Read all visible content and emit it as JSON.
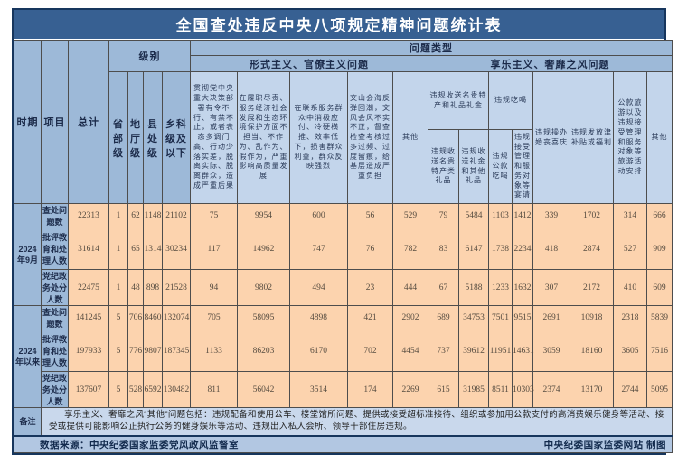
{
  "title": "全国查处违反中央八项规定精神问题统计表",
  "header": {
    "period": "时期",
    "item": "项目",
    "total": "总计",
    "level_group": "级别",
    "levels": [
      "省部级",
      "地厅级",
      "县处级",
      "乡科级及以下"
    ],
    "problem_type_group": "问题类型",
    "formalism_group": "形式主义、官僚主义问题",
    "hedonism_group": "享乐主义、奢靡之风问题",
    "formalism_cols": [
      "贯彻党中央重大决策部署有令不行、有禁不止，或者表态多调门高、行动少落实差，脱离实际、脱离群众，造成严重后果",
      "在履职尽责、服务经济社会发展和生态环境保护方面不担当、不作为、乱作为、假作为，严重影响高质量发展",
      "在联系服务群众中消极应付、冷硬横推、效率低下，损害群众利益，群众反映强烈",
      "文山会海反弹回潮，文风会风不实不正，督查检查考核过多过频、过度留痕，给基层造成严重负担",
      "其他"
    ],
    "hedonism": {
      "gift_group": "违规收送名贵特产和礼品礼金",
      "gift_cols": [
        "违规收送名贵特产类礼品",
        "违规收送礼金和其他礼品"
      ],
      "dining_group": "违规吃喝",
      "dining_cols": [
        "违规公款吃喝",
        "违规接受管理和服务对象等宴请"
      ],
      "other_cols": [
        "违规操办婚丧喜庆",
        "违规发放津补贴或福利",
        "公款旅游以及违规接受管理和服务对象等旅游活动安排",
        "其他"
      ]
    }
  },
  "periods": [
    {
      "label": "2024年9月",
      "rows": [
        {
          "label": "查处问题数",
          "values": [
            "22313",
            "1",
            "62",
            "1148",
            "21102",
            "75",
            "9954",
            "600",
            "56",
            "529",
            "79",
            "5484",
            "1103",
            "1412",
            "339",
            "1702",
            "314",
            "666"
          ]
        },
        {
          "label": "批评教育和处理人数",
          "values": [
            "31614",
            "1",
            "65",
            "1314",
            "30234",
            "117",
            "14962",
            "747",
            "76",
            "782",
            "83",
            "6147",
            "1738",
            "2234",
            "418",
            "2874",
            "527",
            "909"
          ]
        },
        {
          "label": "党纪政务处分人数",
          "values": [
            "22475",
            "1",
            "48",
            "898",
            "21528",
            "94",
            "9802",
            "494",
            "23",
            "444",
            "67",
            "5188",
            "1233",
            "1632",
            "307",
            "2172",
            "410",
            "609"
          ]
        }
      ]
    },
    {
      "label": "2024年以来",
      "rows": [
        {
          "label": "查处问题数",
          "values": [
            "141245",
            "5",
            "706",
            "8460",
            "132074",
            "705",
            "58095",
            "4898",
            "421",
            "2902",
            "689",
            "34753",
            "7501",
            "9515",
            "2691",
            "10918",
            "2318",
            "5839"
          ]
        },
        {
          "label": "批评教育和处理人数",
          "values": [
            "197933",
            "5",
            "776",
            "9807",
            "187345",
            "1133",
            "86203",
            "6170",
            "702",
            "4454",
            "737",
            "39612",
            "11951",
            "14631",
            "3059",
            "18160",
            "3605",
            "7516"
          ]
        },
        {
          "label": "党纪政务处分人数",
          "values": [
            "137607",
            "5",
            "528",
            "6592",
            "130482",
            "811",
            "56042",
            "3514",
            "174",
            "2269",
            "615",
            "31985",
            "8511",
            "10303",
            "2374",
            "13170",
            "2744",
            "5095"
          ]
        }
      ]
    }
  ],
  "remark": {
    "label": "备注",
    "text": "享乐主义、奢靡之风“其他”问题包括：违规配备和使用公车、楼堂馆所问题、提供或接受超标准接待、组织或参加用公款支付的高消费娱乐健身等活动、接受或提供可能影响公正执行公务的健身娱乐等活动、违规出入私人会所、领导干部住房违规。"
  },
  "footer": {
    "source": "数据来源：中央纪委国家监委党风政风监督室",
    "credit": "中央纪委国家监委网站 制图"
  },
  "colors": {
    "title_bar": "#376092",
    "header_medium": "#9db9d8",
    "header_light": "#c3d5eb",
    "data_cell": "#fcd3ae",
    "remark_bg": "#c9d8ec",
    "footer_bg": "#b2c7e2",
    "frame_border": "#17365d"
  },
  "chart_data": {
    "type": "table",
    "title": "全国查处违反中央八项规定精神问题统计表",
    "columns": [
      "时期",
      "项目",
      "总计",
      "省部级",
      "地厅级",
      "县处级",
      "乡科级及以下",
      "贯彻党中央重大决策部署有令不行、有禁不止，或者表态多调门高、行动少落实差，脱离实际、脱离群众，造成严重后果",
      "在履职尽责、服务经济社会发展和生态环境保护方面不担当、不作为、乱作为、假作为，严重影响高质量发展",
      "在联系服务群众中消极应付、冷硬横推、效率低下，损害群众利益，群众反映强烈",
      "文山会海反弹回潮，文风会风不实不正，督查检查考核过多过频、过度留痕，给基层造成严重负担",
      "其他",
      "违规收送名贵特产类礼品",
      "违规收送礼金和其他礼品",
      "违规公款吃喝",
      "违规接受管理和服务对象等宴请",
      "违规操办婚丧喜庆",
      "违规发放津补贴或福利",
      "公款旅游以及违规接受管理和服务对象等旅游活动安排",
      "其他"
    ],
    "rows": [
      [
        "2024年9月",
        "查处问题数",
        22313,
        1,
        62,
        1148,
        21102,
        75,
        9954,
        600,
        56,
        529,
        79,
        5484,
        1103,
        1412,
        339,
        1702,
        314,
        666
      ],
      [
        "2024年9月",
        "批评教育和处理人数",
        31614,
        1,
        65,
        1314,
        30234,
        117,
        14962,
        747,
        76,
        782,
        83,
        6147,
        1738,
        2234,
        418,
        2874,
        527,
        909
      ],
      [
        "2024年9月",
        "党纪政务处分人数",
        22475,
        1,
        48,
        898,
        21528,
        94,
        9802,
        494,
        23,
        444,
        67,
        5188,
        1233,
        1632,
        307,
        2172,
        410,
        609
      ],
      [
        "2024年以来",
        "查处问题数",
        141245,
        5,
        706,
        8460,
        132074,
        705,
        58095,
        4898,
        421,
        2902,
        689,
        34753,
        7501,
        9515,
        2691,
        10918,
        2318,
        5839
      ],
      [
        "2024年以来",
        "批评教育和处理人数",
        197933,
        5,
        776,
        9807,
        187345,
        1133,
        86203,
        6170,
        702,
        4454,
        737,
        39612,
        11951,
        14631,
        3059,
        18160,
        3605,
        7516
      ],
      [
        "2024年以来",
        "党纪政务处分人数",
        137607,
        5,
        528,
        6592,
        130482,
        811,
        56042,
        3514,
        174,
        2269,
        615,
        31985,
        8511,
        10303,
        2374,
        13170,
        2744,
        5095
      ]
    ]
  }
}
